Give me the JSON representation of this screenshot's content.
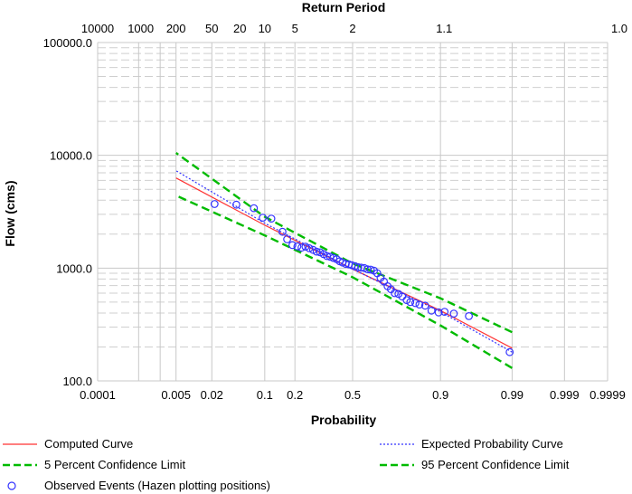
{
  "chart_data": {
    "type": "scatter",
    "title": "",
    "top_axis_label": "Return Period",
    "xlabel": "Probability",
    "ylabel": "Flow (cms)",
    "x_scale": "normal-probability (exceedance)",
    "y_scale": "log",
    "ylim": [
      100,
      100000
    ],
    "grid": true,
    "x_ticks": [
      {
        "p": 0.9999,
        "label": "0.9999"
      },
      {
        "p": 0.999,
        "label": "0.999"
      },
      {
        "p": 0.99,
        "label": "0.99"
      },
      {
        "p": 0.9,
        "label": "0.9"
      },
      {
        "p": 0.5,
        "label": "0.5"
      },
      {
        "p": 0.2,
        "label": "0.2"
      },
      {
        "p": 0.1,
        "label": "0.1"
      },
      {
        "p": 0.02,
        "label": "0.02"
      },
      {
        "p": 0.005,
        "label": "0.005"
      },
      {
        "p": 0.0001,
        "label": "0.0001"
      }
    ],
    "top_ticks": [
      {
        "T": 1.0,
        "label": "1.0"
      },
      {
        "T": 1.1,
        "label": "1.1"
      },
      {
        "T": 2,
        "label": "2"
      },
      {
        "T": 5,
        "label": "5"
      },
      {
        "T": 10,
        "label": "10"
      },
      {
        "T": 20,
        "label": "20"
      },
      {
        "T": 50,
        "label": "50"
      },
      {
        "T": 200,
        "label": "200"
      },
      {
        "T": 1000,
        "label": "1000"
      },
      {
        "T": 10000,
        "label": "10000"
      }
    ],
    "y_ticks": [
      {
        "v": 100,
        "label": "100.0"
      },
      {
        "v": 1000,
        "label": "1000.0"
      },
      {
        "v": 10000,
        "label": "10000.0"
      },
      {
        "v": 100000,
        "label": "100000.0"
      }
    ],
    "series": [
      {
        "name": "Computed Curve",
        "style": "solid",
        "color": "#ff3333",
        "x": [
          0.99,
          0.9,
          0.5,
          0.1,
          0.005
        ],
        "y": [
          195,
          420,
          980,
          2400,
          6300
        ]
      },
      {
        "name": "Expected Probability Curve",
        "style": "dotted",
        "color": "#3333ff",
        "x": [
          0.99,
          0.9,
          0.5,
          0.1,
          0.005
        ],
        "y": [
          180,
          410,
          980,
          2500,
          7300
        ]
      },
      {
        "name": "5 Percent Confidence Limit",
        "style": "dashed",
        "color": "#00bb00",
        "x": [
          0.99,
          0.9,
          0.5,
          0.1,
          0.005
        ],
        "y": [
          270,
          540,
          1100,
          2850,
          10500
        ]
      },
      {
        "name": "95 Percent Confidence Limit",
        "style": "dashed",
        "color": "#00bb00",
        "x": [
          0.99,
          0.9,
          0.5,
          0.1,
          0.005
        ],
        "y": [
          130,
          310,
          830,
          1950,
          4400
        ]
      }
    ],
    "observed": {
      "name": "Observed Events (Hazen plotting positions)",
      "color": "#3333ff",
      "x": [
        0.989,
        0.955,
        0.93,
        0.91,
        0.895,
        0.875,
        0.855,
        0.835,
        0.82,
        0.8,
        0.785,
        0.765,
        0.748,
        0.73,
        0.712,
        0.695,
        0.676,
        0.658,
        0.64,
        0.622,
        0.604,
        0.586,
        0.568,
        0.55,
        0.532,
        0.514,
        0.496,
        0.478,
        0.46,
        0.442,
        0.425,
        0.408,
        0.39,
        0.372,
        0.354,
        0.336,
        0.318,
        0.3,
        0.282,
        0.264,
        0.246,
        0.228,
        0.21,
        0.19,
        0.17,
        0.153,
        0.118,
        0.095,
        0.075,
        0.045,
        0.022
      ],
      "y": [
        180,
        375,
        395,
        410,
        405,
        420,
        465,
        475,
        490,
        500,
        520,
        560,
        590,
        600,
        650,
        690,
        760,
        820,
        900,
        950,
        970,
        975,
        1000,
        1010,
        1020,
        1040,
        1060,
        1080,
        1090,
        1120,
        1150,
        1200,
        1230,
        1260,
        1280,
        1330,
        1380,
        1400,
        1450,
        1500,
        1550,
        1520,
        1560,
        1600,
        1800,
        2100,
        2750,
        2800,
        3400,
        3650,
        3700
      ]
    }
  },
  "legend": {
    "computed": "Computed Curve",
    "expected": "Expected Probability Curve",
    "conf5": "5 Percent Confidence Limit",
    "conf95": "95 Percent Confidence Limit",
    "observed": "Observed Events (Hazen plotting positions)"
  }
}
